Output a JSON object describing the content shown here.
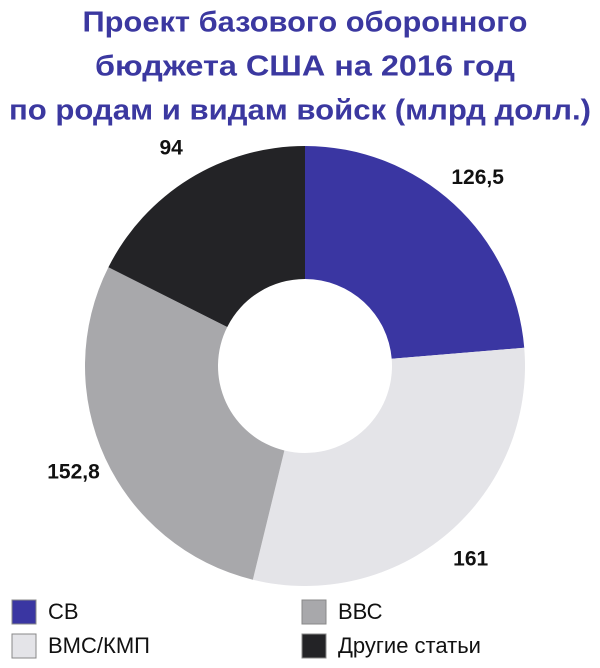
{
  "chart_data": {
    "type": "donut",
    "title": [
      "Проект базового оборонного",
      "бюджета США на 2016 год",
      "по родам и видам войск (млрд долл.)"
    ],
    "categories": [
      "СВ",
      "ВМС/КМП",
      "ВВС",
      "Другие статьи"
    ],
    "values": [
      126.5,
      161,
      152.8,
      94
    ],
    "value_labels": [
      "126,5",
      "161",
      "152,8",
      "94"
    ],
    "colors": [
      "#3a36a2",
      "#e4e4e8",
      "#a8a8ab",
      "#232326"
    ]
  }
}
